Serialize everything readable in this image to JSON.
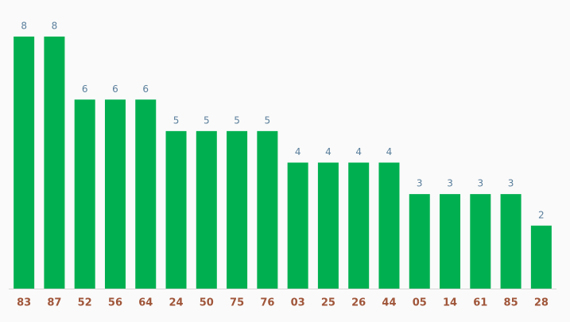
{
  "chart_data": {
    "type": "bar",
    "categories": [
      "83",
      "87",
      "52",
      "56",
      "64",
      "24",
      "50",
      "75",
      "76",
      "03",
      "25",
      "26",
      "44",
      "05",
      "14",
      "61",
      "85",
      "28"
    ],
    "values": [
      8,
      8,
      6,
      6,
      6,
      5,
      5,
      5,
      5,
      4,
      4,
      4,
      4,
      3,
      3,
      3,
      3,
      2
    ],
    "color": "#00b050"
  }
}
